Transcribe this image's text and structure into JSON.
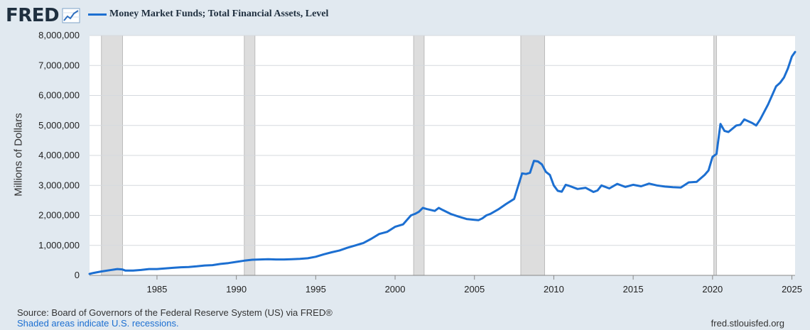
{
  "header": {
    "logo_text": "FRED",
    "logo_icon": "line-chart-icon"
  },
  "legend": {
    "label": "Money Market Funds; Total Financial Assets, Level",
    "color": "#1c6fd1"
  },
  "footer": {
    "source": "Source: Board of Governors of the Federal Reserve System (US) via FRED®",
    "recessions_note": "Shaded areas indicate U.S. recessions.",
    "site": "fred.stlouisfed.org"
  },
  "chart_data": {
    "type": "line",
    "title": "Money Market Funds; Total Financial Assets, Level",
    "xlabel": "",
    "ylabel": "Millions of Dollars",
    "xlim": [
      1980.75,
      2025.2
    ],
    "ylim": [
      0,
      8000000
    ],
    "grid": true,
    "legend_position": "top-left",
    "x_ticks": [
      1985,
      1990,
      1995,
      2000,
      2005,
      2010,
      2015,
      2020,
      2025
    ],
    "x_tick_labels": [
      "1985",
      "1990",
      "1995",
      "2000",
      "2005",
      "2010",
      "2015",
      "2020",
      "2025"
    ],
    "y_ticks": [
      0,
      1000000,
      2000000,
      3000000,
      4000000,
      5000000,
      6000000,
      7000000,
      8000000
    ],
    "y_tick_labels": [
      "0",
      "1,000,000",
      "2,000,000",
      "3,000,000",
      "4,000,000",
      "5,000,000",
      "6,000,000",
      "7,000,000",
      "8,000,000"
    ],
    "recessions": [
      {
        "start": 1981.5,
        "end": 1982.83
      },
      {
        "start": 1990.5,
        "end": 1991.17
      },
      {
        "start": 2001.17,
        "end": 2001.83
      },
      {
        "start": 2007.92,
        "end": 2009.42
      },
      {
        "start": 2020.08,
        "end": 2020.25
      }
    ],
    "series": [
      {
        "name": "Money Market Funds; Total Financial Assets, Level",
        "color": "#1c6fd1",
        "x": [
          1980.75,
          1981.0,
          1981.5,
          1982.0,
          1982.5,
          1982.8,
          1983.0,
          1983.5,
          1984.0,
          1984.5,
          1985.0,
          1985.5,
          1986.0,
          1986.5,
          1987.0,
          1987.5,
          1988.0,
          1988.5,
          1989.0,
          1989.5,
          1990.0,
          1990.5,
          1991.0,
          1991.5,
          1992.0,
          1992.5,
          1993.0,
          1993.5,
          1994.0,
          1994.5,
          1995.0,
          1995.5,
          1996.0,
          1996.5,
          1997.0,
          1997.5,
          1998.0,
          1998.5,
          1999.0,
          1999.5,
          2000.0,
          2000.5,
          2001.0,
          2001.25,
          2001.5,
          2001.75,
          2002.0,
          2002.5,
          2002.75,
          2003.0,
          2003.5,
          2004.0,
          2004.5,
          2005.0,
          2005.25,
          2005.5,
          2005.75,
          2006.0,
          2006.5,
          2007.0,
          2007.5,
          2008.0,
          2008.25,
          2008.5,
          2008.75,
          2009.0,
          2009.25,
          2009.5,
          2009.75,
          2010.0,
          2010.25,
          2010.5,
          2010.75,
          2011.0,
          2011.5,
          2012.0,
          2012.5,
          2012.75,
          2013.0,
          2013.5,
          2014.0,
          2014.5,
          2015.0,
          2015.5,
          2016.0,
          2016.5,
          2017.0,
          2017.5,
          2018.0,
          2018.5,
          2019.0,
          2019.5,
          2019.75,
          2020.0,
          2020.25,
          2020.5,
          2020.75,
          2021.0,
          2021.5,
          2021.75,
          2022.0,
          2022.5,
          2022.75,
          2023.0,
          2023.5,
          2024.0,
          2024.25,
          2024.5,
          2024.75,
          2025.0,
          2025.2
        ],
        "values": [
          50000,
          80000,
          130000,
          170000,
          210000,
          200000,
          160000,
          160000,
          180000,
          210000,
          210000,
          230000,
          250000,
          270000,
          280000,
          300000,
          330000,
          340000,
          380000,
          410000,
          450000,
          490000,
          520000,
          530000,
          540000,
          530000,
          530000,
          540000,
          550000,
          570000,
          620000,
          700000,
          770000,
          830000,
          920000,
          1000000,
          1080000,
          1220000,
          1380000,
          1450000,
          1620000,
          1700000,
          2000000,
          2050000,
          2120000,
          2250000,
          2210000,
          2150000,
          2250000,
          2180000,
          2050000,
          1960000,
          1880000,
          1850000,
          1840000,
          1900000,
          2000000,
          2050000,
          2200000,
          2380000,
          2550000,
          3400000,
          3380000,
          3420000,
          3820000,
          3800000,
          3700000,
          3450000,
          3350000,
          3000000,
          2820000,
          2790000,
          3020000,
          2980000,
          2880000,
          2920000,
          2780000,
          2830000,
          3000000,
          2900000,
          3050000,
          2950000,
          3020000,
          2970000,
          3060000,
          3000000,
          2960000,
          2940000,
          2930000,
          3100000,
          3120000,
          3350000,
          3500000,
          3950000,
          4050000,
          5050000,
          4820000,
          4780000,
          5000000,
          5020000,
          5200000,
          5080000,
          5000000,
          5200000,
          5700000,
          6300000,
          6420000,
          6600000,
          6900000,
          7300000,
          7450000
        ]
      }
    ]
  }
}
